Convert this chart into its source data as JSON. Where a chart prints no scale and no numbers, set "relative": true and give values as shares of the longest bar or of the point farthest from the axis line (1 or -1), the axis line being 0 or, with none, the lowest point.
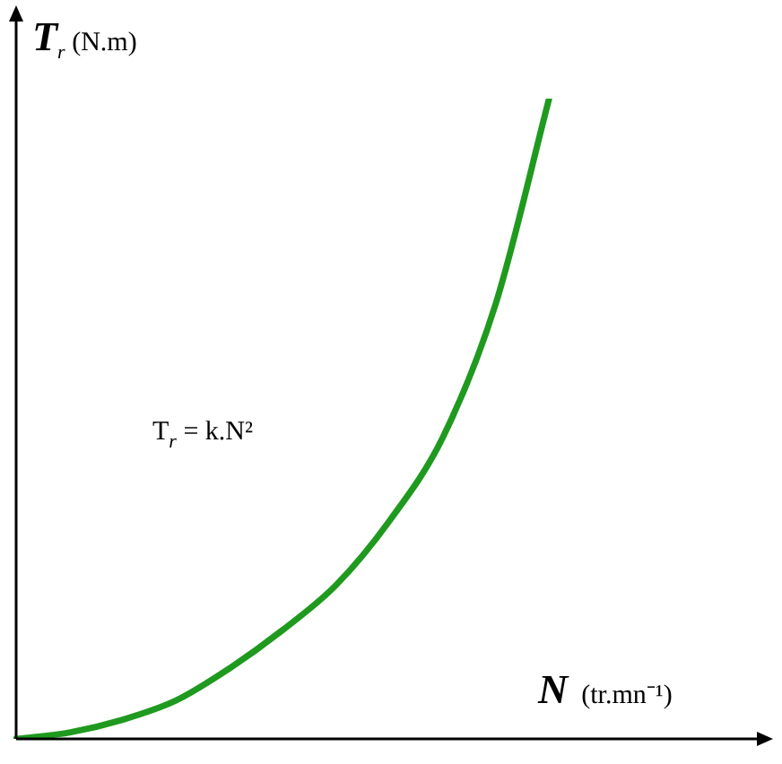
{
  "chart_data": {
    "type": "line",
    "relative": true,
    "ylabel": "T$_{r}$ (N.m)",
    "xlabel": "N  (tr.mn⁻¹)",
    "annotations": [
      "T$_{r}$ = k.N²"
    ],
    "categories": [
      null,
      null,
      null,
      null,
      null,
      null,
      null,
      null,
      null,
      null,
      null,
      null,
      null,
      null,
      null
    ],
    "series": [
      {
        "color": "#1f9a1f",
        "values": [
          0,
          0.01,
          0.03,
          0.06,
          0.11,
          0.17,
          0.24,
          0.34,
          0.47,
          0.68,
          1,
          null,
          null,
          null,
          null
        ]
      }
    ],
    "legend": false,
    "marker": "none",
    "line_style": "solid"
  }
}
